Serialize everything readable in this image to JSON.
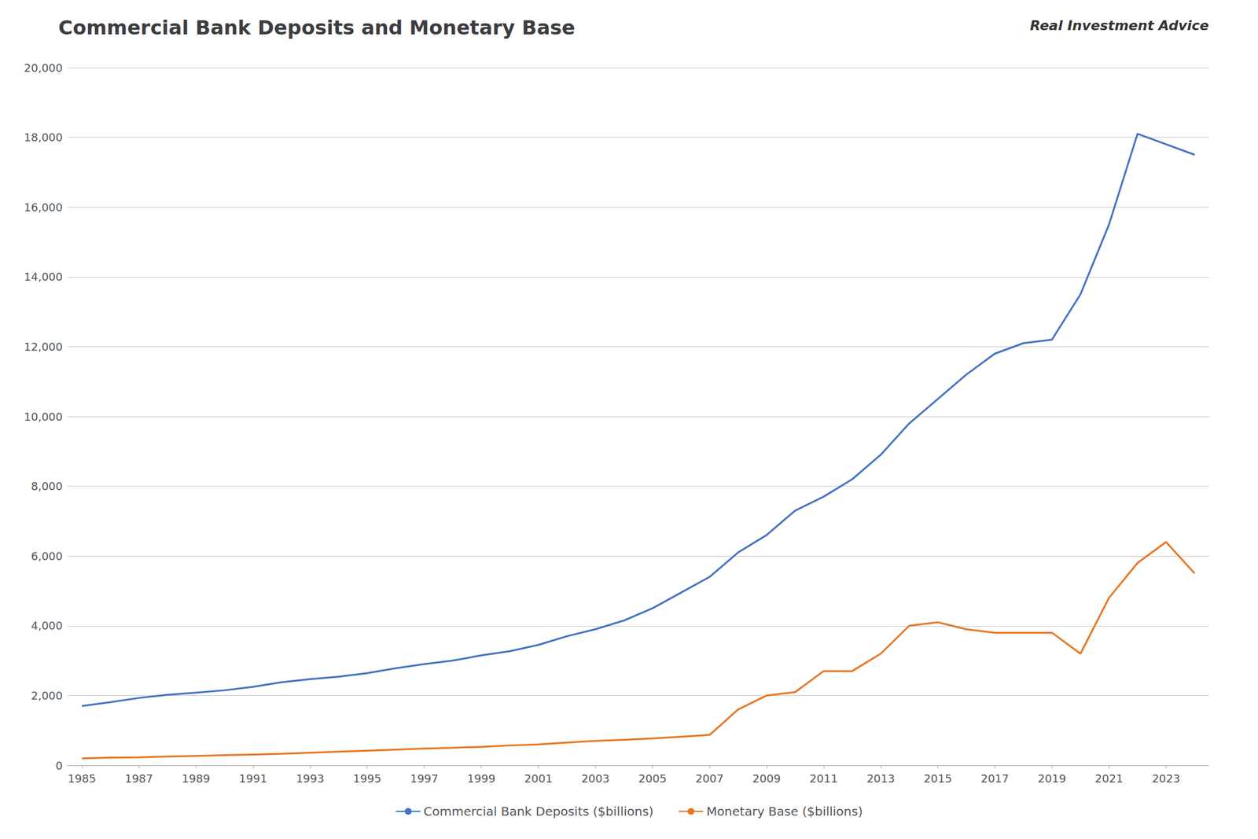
{
  "chart_data": {
    "type": "line",
    "title": "Commercial Bank Deposits and Monetary Base",
    "annotations": [
      "Real Investment Advice"
    ],
    "x": [
      1985,
      1986,
      1987,
      1988,
      1989,
      1990,
      1991,
      1992,
      1993,
      1994,
      1995,
      1996,
      1997,
      1998,
      1999,
      2000,
      2001,
      2002,
      2003,
      2004,
      2005,
      2006,
      2007,
      2008,
      2009,
      2010,
      2011,
      2012,
      2013,
      2014,
      2015,
      2016,
      2017,
      2018,
      2019,
      2020,
      2021,
      2022,
      2023,
      2024
    ],
    "series": [
      {
        "name": "Commercial Bank Deposits ($billions)",
        "color": "#4472C4",
        "values": [
          1700,
          1810,
          1930,
          2020,
          2080,
          2150,
          2250,
          2380,
          2470,
          2540,
          2640,
          2780,
          2900,
          3000,
          3150,
          3270,
          3450,
          3700,
          3900,
          4150,
          4500,
          4950,
          5400,
          6100,
          6600,
          7300,
          7700,
          8200,
          8900,
          9800,
          10500,
          11200,
          11800,
          12100,
          12200,
          13500,
          15500,
          18100,
          17800,
          17500
        ]
      },
      {
        "name": "Monetary Base ($billions)",
        "color": "#E87722",
        "values": [
          200,
          220,
          230,
          250,
          270,
          290,
          310,
          330,
          360,
          390,
          420,
          450,
          480,
          500,
          530,
          570,
          600,
          650,
          700,
          730,
          770,
          820,
          870,
          1600,
          2000,
          2100,
          2700,
          2700,
          3200,
          4000,
          4100,
          3900,
          3800,
          3800,
          3800,
          3200,
          4800,
          5800,
          6400,
          5500
        ]
      }
    ],
    "xlim": [
      1984.5,
      2024.5
    ],
    "xticks": [
      1985,
      1987,
      1989,
      1991,
      1993,
      1995,
      1997,
      1999,
      2001,
      2003,
      2005,
      2007,
      2009,
      2011,
      2013,
      2015,
      2017,
      2019,
      2021,
      2023
    ],
    "ylim": [
      0,
      20000
    ],
    "yticks": [
      0,
      {
        "value": 2000,
        "label": "2,000"
      },
      {
        "value": 4000,
        "label": "4,000"
      },
      {
        "value": 6000,
        "label": "6,000"
      },
      {
        "value": 8000,
        "label": "8,000"
      },
      {
        "value": 10000,
        "label": "10,000"
      },
      {
        "value": 12000,
        "label": "12,000"
      },
      {
        "value": 14000,
        "label": "14,000"
      },
      {
        "value": 16000,
        "label": "16,000"
      },
      {
        "value": 18000,
        "label": "18,000"
      },
      {
        "value": 20000,
        "label": "20,000"
      }
    ],
    "grid": true,
    "legend": "bottom"
  }
}
